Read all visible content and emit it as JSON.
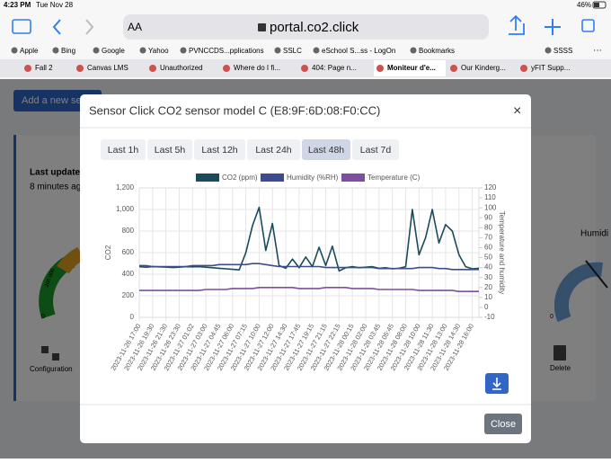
{
  "status": {
    "time": "4:23 PM",
    "date": "Tue Nov 28",
    "battery": "46%"
  },
  "toolbar": {
    "text_size": "AA",
    "url": "portal.co2.click"
  },
  "bookmarks": [
    "Apple",
    "Bing",
    "Google",
    "Yahoo",
    "PVNCCDS...pplications",
    "SSLC",
    "eSchool S...ss - LogOn",
    "Bookmarks",
    "SSSS"
  ],
  "tabs": [
    "Fall 2",
    "Canvas LMS",
    "Unauthorized",
    "Where do I fi...",
    "404: Page n...",
    "Moniteur d'e...",
    "Our Kinderg...",
    "yFIT Supp..."
  ],
  "background": {
    "add_button": "Add a new se",
    "last_update": "Last update",
    "ago": "8 minutes ag",
    "configuration": "Configuration",
    "delete": "Delete",
    "humidity": "Humidi",
    "gauge_zero": "0",
    "gauge_mark": "200 000"
  },
  "modal": {
    "title": "Sensor Click CO2 sensor model C (E8:9F:6D:08:F0:CC)",
    "close_x": "×",
    "ranges": [
      "Last 1h",
      "Last 5h",
      "Last 12h",
      "Last 24h",
      "Last 48h",
      "Last 7d"
    ],
    "close": "Close"
  },
  "chart_data": {
    "type": "line",
    "ylabel": "CO2",
    "y2label": "Temperature and humidity",
    "categories": [
      "2023-11-26 17:00",
      null,
      "2023-11-26 19:30",
      null,
      "2023-11-26 21:30",
      null,
      "2023-11-26 23:30",
      null,
      "2023-11-27 01:02",
      null,
      "2023-11-27 03:00",
      null,
      "2023-11-27 04:45",
      null,
      "2023-11-27 06:00",
      null,
      "2023-11-27 07:15",
      null,
      "2023-11-27 10:00",
      null,
      "2023-11-27 12:00",
      null,
      "2023-11-27 14:30",
      null,
      "2023-11-27 17:45",
      null,
      "2023-11-27 19:15",
      null,
      "2023-11-27 21:15",
      null,
      "2023-11-27 22:15",
      null,
      "2023-11-28 00:15",
      null,
      "2023-11-28 02:00",
      null,
      "2023-11-28 03:45",
      null,
      "2023-11-28 05:45",
      null,
      "2023-11-28 08:00",
      null,
      "2023-11-28 10:00",
      null,
      "2023-11-28 11:30",
      null,
      "2023-11-28 13:00",
      null,
      "2023-11-28 14:30",
      null,
      "2023-11-28 16:00",
      null
    ],
    "series": [
      {
        "name": "CO2 (ppm)",
        "color": "#1b4a5e",
        "values": [
          470,
          465,
          470,
          468,
          466,
          462,
          465,
          470,
          468,
          470,
          465,
          460,
          455,
          450,
          445,
          440,
          600,
          850,
          1020,
          620,
          870,
          480,
          455,
          540,
          460,
          560,
          470,
          650,
          480,
          660,
          430,
          460,
          470,
          460,
          465,
          470,
          455,
          460,
          450,
          455,
          470,
          1000,
          580,
          740,
          1000,
          690,
          860,
          800,
          580,
          470,
          450,
          455
        ]
      },
      {
        "name": "Humidity (%RH)",
        "color": "#3d4c8e",
        "axis": "y2",
        "values": [
          42,
          42,
          41,
          41,
          41,
          41,
          41,
          41,
          42,
          42,
          42,
          42,
          43,
          43,
          43,
          43,
          43,
          44,
          44,
          43,
          42,
          41,
          41,
          41,
          41,
          41,
          41,
          41,
          40,
          40,
          40,
          40,
          40,
          40,
          40,
          40,
          39,
          39,
          39,
          39,
          39,
          39,
          40,
          40,
          40,
          39,
          39,
          38,
          38,
          38,
          38,
          38
        ]
      },
      {
        "name": "Temperature (C)",
        "color": "#7d4f9e",
        "axis": "y2",
        "values": [
          17,
          17,
          17,
          17,
          17,
          17,
          17,
          17,
          17,
          17,
          18,
          18,
          18,
          18,
          19,
          19,
          19,
          19,
          20,
          20,
          20,
          20,
          20,
          20,
          19,
          19,
          19,
          19,
          20,
          20,
          20,
          20,
          19,
          19,
          19,
          19,
          18,
          18,
          18,
          18,
          18,
          18,
          17,
          17,
          17,
          17,
          17,
          17,
          16,
          16,
          16,
          16
        ]
      }
    ],
    "ylim": [
      0,
      1200
    ],
    "yticks": [
      0,
      200,
      400,
      600,
      800,
      {
        "value": 1000,
        "label": "1,000"
      },
      {
        "value": 1200,
        "label": "1,200"
      }
    ],
    "y2lim": [
      -10,
      120
    ],
    "y2ticks": [
      -10,
      0,
      10,
      20,
      30,
      40,
      50,
      60,
      70,
      80,
      90,
      100,
      110,
      120
    ],
    "grid": true,
    "legend": "top"
  }
}
